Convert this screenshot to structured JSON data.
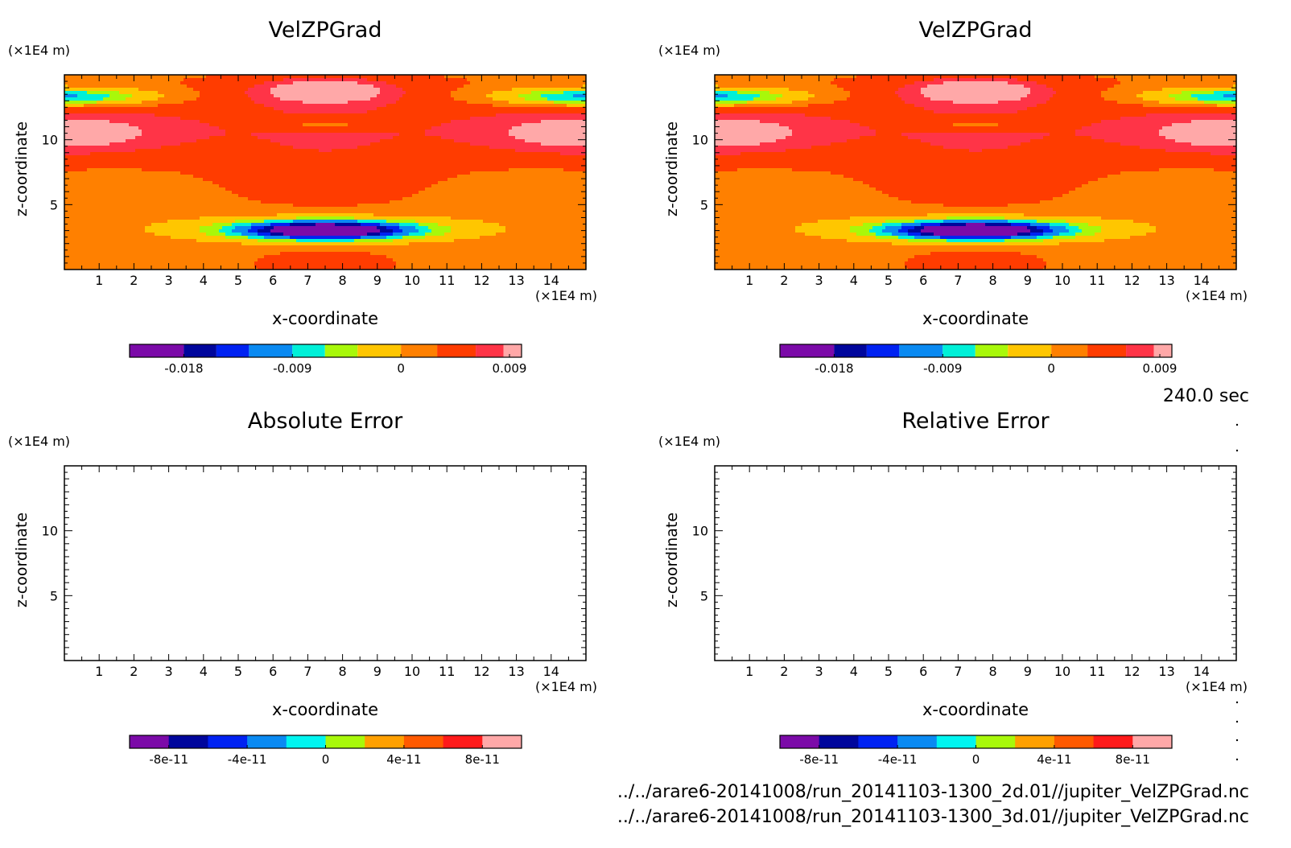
{
  "time_label": "240.0 sec",
  "files": [
    "../../arare6-20141008/run_20141103-1300_2d.01//jupiter_VelZPGrad.nc",
    "../../arare6-20141008/run_20141103-1300_3d.01//jupiter_VelZPGrad.nc"
  ],
  "colors": {
    "velzpgrad_levels": [
      "#7b0aa8",
      "#00069c",
      "#0022f2",
      "#0a8af2",
      "#00f0d8",
      "#a8f80a",
      "#ffc600",
      "#ff8000",
      "#ff3c00",
      "#ff3447",
      "#ffa8a8"
    ],
    "error_levels": [
      "#7b0aa8",
      "#00069c",
      "#0022f2",
      "#0a8af2",
      "#00f5f0",
      "#a8f80a",
      "#ffa000",
      "#ff5a00",
      "#ff1a1a",
      "#ffa8a8"
    ]
  },
  "chart_data": [
    {
      "type": "heatmap",
      "title": "VelZPGrad",
      "xlabel": "x-coordinate",
      "ylabel": "z-coordinate",
      "x_unit": "(×1E4 m)",
      "y_unit": "(×1E4 m)",
      "xlim": [
        0,
        15
      ],
      "ylim": [
        0,
        15
      ],
      "x_ticks": [
        1,
        2,
        3,
        4,
        5,
        6,
        7,
        8,
        9,
        10,
        11,
        12,
        13,
        14
      ],
      "y_ticks": [
        5,
        10
      ],
      "colorbar_ticks": [
        "-0.018",
        "-0.009",
        "0",
        "0.009"
      ],
      "colorbar_tick_values": [
        -0.018,
        -0.009,
        0,
        0.009
      ],
      "colorbar_range": [
        -0.0225,
        0.01
      ],
      "field": "velzpgrad"
    },
    {
      "type": "heatmap",
      "title": "VelZPGrad",
      "xlabel": "x-coordinate",
      "ylabel": "z-coordinate",
      "x_unit": "(×1E4 m)",
      "y_unit": "(×1E4 m)",
      "xlim": [
        0,
        15
      ],
      "ylim": [
        0,
        15
      ],
      "x_ticks": [
        1,
        2,
        3,
        4,
        5,
        6,
        7,
        8,
        9,
        10,
        11,
        12,
        13,
        14
      ],
      "y_ticks": [
        5,
        10
      ],
      "colorbar_ticks": [
        "-0.018",
        "-0.009",
        "0",
        "0.009"
      ],
      "colorbar_tick_values": [
        -0.018,
        -0.009,
        0,
        0.009
      ],
      "colorbar_range": [
        -0.0225,
        0.01
      ],
      "field": "velzpgrad"
    },
    {
      "type": "heatmap",
      "title": "Absolute Error",
      "xlabel": "x-coordinate",
      "ylabel": "z-coordinate",
      "x_unit": "(×1E4 m)",
      "y_unit": "(×1E4 m)",
      "xlim": [
        0,
        15
      ],
      "ylim": [
        0,
        15
      ],
      "x_ticks": [
        1,
        2,
        3,
        4,
        5,
        6,
        7,
        8,
        9,
        10,
        11,
        12,
        13,
        14
      ],
      "y_ticks": [
        5,
        10
      ],
      "colorbar_ticks": [
        "-8e-11",
        "-4e-11",
        "0",
        "4e-11",
        "8e-11"
      ],
      "colorbar_tick_values": [
        -8e-11,
        -4e-11,
        0,
        4e-11,
        8e-11
      ],
      "colorbar_range": [
        -1e-10,
        1e-10
      ],
      "field": "empty"
    },
    {
      "type": "heatmap",
      "title": "Relative Error",
      "xlabel": "x-coordinate",
      "ylabel": "z-coordinate",
      "x_unit": "(×1E4 m)",
      "y_unit": "(×1E4 m)",
      "xlim": [
        0,
        15
      ],
      "ylim": [
        0,
        15
      ],
      "x_ticks": [
        1,
        2,
        3,
        4,
        5,
        6,
        7,
        8,
        9,
        10,
        11,
        12,
        13,
        14
      ],
      "y_ticks": [
        5,
        10
      ],
      "colorbar_ticks": [
        "-8e-11",
        "-4e-11",
        "0",
        "4e-11",
        "8e-11"
      ],
      "colorbar_tick_values": [
        -8e-11,
        -4e-11,
        0,
        4e-11,
        8e-11
      ],
      "colorbar_range": [
        -1e-10,
        1e-10
      ],
      "field": "empty"
    }
  ]
}
